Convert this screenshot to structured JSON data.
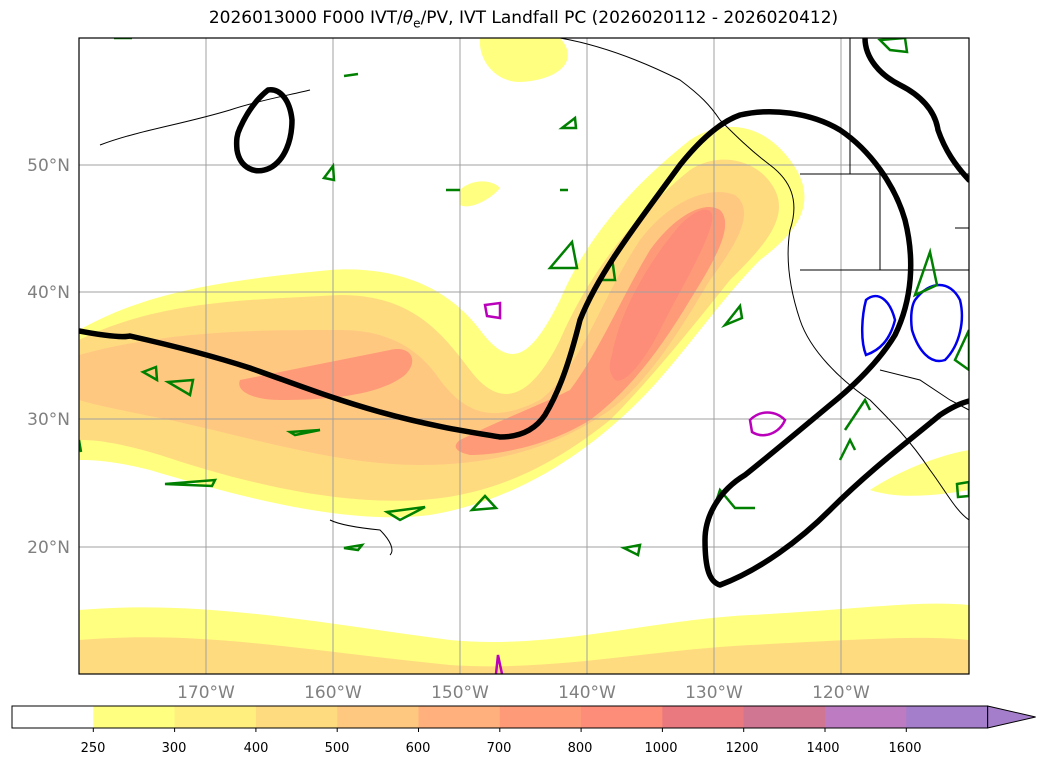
{
  "figure": {
    "title_prefix": "2026013000 F000 IVT/",
    "title_theta": "θ",
    "title_sub": "e",
    "title_suffix": "/PV, IVT Landfall PC (2026020112 - 2026020412)"
  },
  "map": {
    "lat_labels": [
      "50°N",
      "40°N",
      "30°N",
      "20°N"
    ],
    "lon_labels": [
      "170°W",
      "160°W",
      "150°W",
      "140°W",
      "130°W",
      "120°W"
    ]
  },
  "colorbar": {
    "ticks": [
      "250",
      "300",
      "400",
      "500",
      "600",
      "700",
      "800",
      "1000",
      "1200",
      "1400",
      "1600"
    ],
    "colors": [
      "#ffffff",
      "#ffff80",
      "#ffef7f",
      "#ffdb80",
      "#ffc881",
      "#ffb07c",
      "#ff9a78",
      "#fd8c79",
      "#e9787f",
      "#d07592",
      "#bd7cc2",
      "#a47dcb"
    ]
  }
}
